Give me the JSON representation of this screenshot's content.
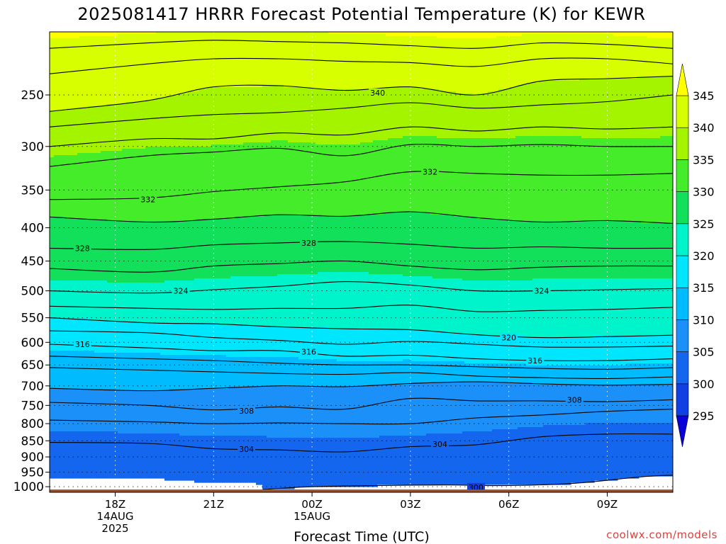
{
  "chart_data": {
    "type": "heatmap",
    "title": "2025081417 HRRR Forecast Potential Temperature (K) for KEWR",
    "xlabel": "Forecast Time (UTC)",
    "ylabel": "",
    "credit": "coolwx.com/models",
    "x_unit": "forecast hour from 2025081417",
    "x_range": [
      -1,
      18
    ],
    "x_ticks": [
      {
        "x": 1,
        "lines": [
          "18Z",
          "14AUG",
          "2025"
        ]
      },
      {
        "x": 4,
        "lines": [
          "21Z"
        ]
      },
      {
        "x": 7,
        "lines": [
          "00Z",
          "15AUG"
        ]
      },
      {
        "x": 10,
        "lines": [
          "03Z"
        ]
      },
      {
        "x": 13,
        "lines": [
          "06Z"
        ]
      },
      {
        "x": 16,
        "lines": [
          "09Z"
        ]
      }
    ],
    "y_unit": "hPa",
    "y_scale": "log",
    "y_range": [
      1020,
      200
    ],
    "y_ticks": [
      250,
      300,
      350,
      400,
      450,
      500,
      550,
      600,
      650,
      700,
      750,
      800,
      850,
      900,
      950,
      1000
    ],
    "surface_pressure": 1010,
    "grid": "dotted",
    "colorbar": {
      "levels": [
        295,
        300,
        305,
        310,
        315,
        320,
        325,
        330,
        335,
        340,
        345
      ],
      "tick_labels": [
        "295",
        "300",
        "305",
        "310",
        "315",
        "320",
        "325",
        "330",
        "335",
        "340",
        "345"
      ],
      "colors": [
        "#0a00d8",
        "#1040e4",
        "#1466ee",
        "#1a90f8",
        "#00bcff",
        "#00e6ff",
        "#00f4cc",
        "#12e05a",
        "#44ec2a",
        "#a4f400",
        "#d8ff00",
        "#ffff00"
      ],
      "placement": "right"
    },
    "contour_labels": [
      {
        "text": "340",
        "x": 9.0,
        "p": 248
      },
      {
        "text": "332",
        "x": 2.0,
        "p": 362
      },
      {
        "text": "332",
        "x": 10.6,
        "p": 328
      },
      {
        "text": "328",
        "x": 0.0,
        "p": 430
      },
      {
        "text": "328",
        "x": 6.9,
        "p": 422
      },
      {
        "text": "324",
        "x": 3.0,
        "p": 500
      },
      {
        "text": "324",
        "x": 14.0,
        "p": 500
      },
      {
        "text": "320",
        "x": 13.0,
        "p": 590
      },
      {
        "text": "316",
        "x": 0.0,
        "p": 604
      },
      {
        "text": "316",
        "x": 6.9,
        "p": 620
      },
      {
        "text": "316",
        "x": 13.8,
        "p": 640
      },
      {
        "text": "308",
        "x": 5.0,
        "p": 765
      },
      {
        "text": "308",
        "x": 15.0,
        "p": 735
      },
      {
        "text": "304",
        "x": 5.0,
        "p": 875
      },
      {
        "text": "304",
        "x": 10.9,
        "p": 860
      },
      {
        "text": "300",
        "x": 12.0,
        "p": 1002
      }
    ],
    "contours": [
      {
        "level": 344,
        "x": [
          -1,
          2,
          4,
          6,
          8,
          10,
          12,
          14,
          16,
          18
        ],
        "p": [
          212,
          208,
          206,
          207,
          208,
          210,
          212,
          208,
          209,
          212
        ]
      },
      {
        "level": 342,
        "x": [
          -1,
          2,
          4,
          6,
          8,
          10,
          12,
          14,
          16,
          18
        ],
        "p": [
          232,
          224,
          220,
          220,
          222,
          223,
          226,
          220,
          220,
          224
        ]
      },
      {
        "level": 340,
        "x": [
          -1,
          2,
          4,
          6,
          8,
          10,
          12,
          14,
          16,
          18
        ],
        "p": [
          265,
          255,
          243,
          242,
          246,
          243,
          250,
          238,
          236,
          234
        ]
      },
      {
        "level": 338,
        "x": [
          -1,
          2,
          4,
          6,
          8,
          10,
          12,
          14,
          16,
          18
        ],
        "p": [
          280,
          272,
          268,
          266,
          262,
          257,
          262,
          259,
          256,
          250
        ]
      },
      {
        "level": 336,
        "x": [
          -1,
          2,
          4,
          6,
          8,
          10,
          12,
          14,
          16,
          18
        ],
        "p": [
          300,
          292,
          292,
          286,
          288,
          280,
          284,
          280,
          282,
          280
        ]
      },
      {
        "level": 334,
        "x": [
          -1,
          2,
          4,
          6,
          8,
          10,
          12,
          14,
          16,
          18
        ],
        "p": [
          322,
          310,
          306,
          302,
          310,
          298,
          300,
          298,
          300,
          300
        ]
      },
      {
        "level": 332,
        "x": [
          -1,
          2,
          4,
          6,
          8,
          10,
          12,
          14,
          16,
          18
        ],
        "p": [
          362,
          360,
          352,
          346,
          340,
          328,
          330,
          332,
          332,
          330
        ]
      },
      {
        "level": 330,
        "x": [
          -1,
          2,
          4,
          6,
          8,
          10,
          12,
          14,
          16,
          18
        ],
        "p": [
          385,
          392,
          388,
          382,
          384,
          378,
          386,
          392,
          390,
          394
        ]
      },
      {
        "level": 328,
        "x": [
          -1,
          2,
          4,
          6,
          8,
          10,
          12,
          14,
          16,
          18
        ],
        "p": [
          430,
          432,
          425,
          422,
          420,
          424,
          430,
          428,
          430,
          430
        ]
      },
      {
        "level": 326,
        "x": [
          -1,
          2,
          4,
          6,
          8,
          10,
          12,
          14,
          16,
          18
        ],
        "p": [
          462,
          468,
          458,
          454,
          450,
          458,
          464,
          460,
          458,
          458
        ]
      },
      {
        "level": 324,
        "x": [
          -1,
          2,
          4,
          6,
          8,
          10,
          12,
          14,
          16,
          18
        ],
        "p": [
          500,
          504,
          498,
          492,
          484,
          490,
          500,
          500,
          498,
          496
        ]
      },
      {
        "level": 322,
        "x": [
          -1,
          2,
          4,
          6,
          8,
          10,
          12,
          14,
          16,
          18
        ],
        "p": [
          528,
          532,
          534,
          532,
          532,
          526,
          538,
          536,
          534,
          530
        ]
      },
      {
        "level": 320,
        "x": [
          -1,
          2,
          4,
          6,
          8,
          10,
          12,
          14,
          16,
          18
        ],
        "p": [
          550,
          560,
          562,
          568,
          572,
          574,
          584,
          590,
          588,
          585
        ]
      },
      {
        "level": 318,
        "x": [
          -1,
          2,
          4,
          6,
          8,
          10,
          12,
          14,
          16,
          18
        ],
        "p": [
          576,
          580,
          590,
          596,
          604,
          598,
          604,
          610,
          610,
          608
        ]
      },
      {
        "level": 316,
        "x": [
          -1,
          2,
          4,
          6,
          8,
          10,
          12,
          14,
          16,
          18
        ],
        "p": [
          604,
          612,
          618,
          618,
          630,
          628,
          636,
          640,
          640,
          636
        ]
      },
      {
        "level": 314,
        "x": [
          -1,
          2,
          4,
          6,
          8,
          10,
          12,
          14,
          16,
          18
        ],
        "p": [
          630,
          636,
          640,
          646,
          650,
          650,
          654,
          658,
          660,
          656
        ]
      },
      {
        "level": 312,
        "x": [
          -1,
          2,
          4,
          6,
          8,
          10,
          12,
          14,
          16,
          18
        ],
        "p": [
          656,
          662,
          666,
          670,
          672,
          668,
          676,
          680,
          682,
          678
        ]
      },
      {
        "level": 310,
        "x": [
          -1,
          2,
          4,
          6,
          8,
          10,
          12,
          14,
          16,
          18
        ],
        "p": [
          706,
          712,
          706,
          700,
          702,
          694,
          690,
          695,
          698,
          696
        ]
      },
      {
        "level": 308,
        "x": [
          -1,
          2,
          4,
          6,
          8,
          10,
          12,
          14,
          16,
          18
        ],
        "p": [
          742,
          750,
          762,
          754,
          760,
          732,
          738,
          738,
          740,
          735
        ]
      },
      {
        "level": 306,
        "x": [
          -1,
          2,
          4,
          6,
          8,
          10,
          12,
          14,
          16,
          18
        ],
        "p": [
          790,
          795,
          800,
          798,
          800,
          800,
          784,
          776,
          766,
          760
        ]
      },
      {
        "level": 304,
        "x": [
          -1,
          2,
          4,
          6,
          8,
          10,
          12,
          14,
          16,
          18
        ],
        "p": [
          855,
          858,
          874,
          878,
          884,
          868,
          862,
          838,
          830,
          830
        ]
      },
      {
        "level": 300,
        "x": [
          5.5,
          7,
          9,
          11,
          13,
          15,
          17,
          18
        ],
        "p": [
          1010,
          1000,
          996,
          994,
          996,
          988,
          966,
          960
        ]
      }
    ]
  }
}
